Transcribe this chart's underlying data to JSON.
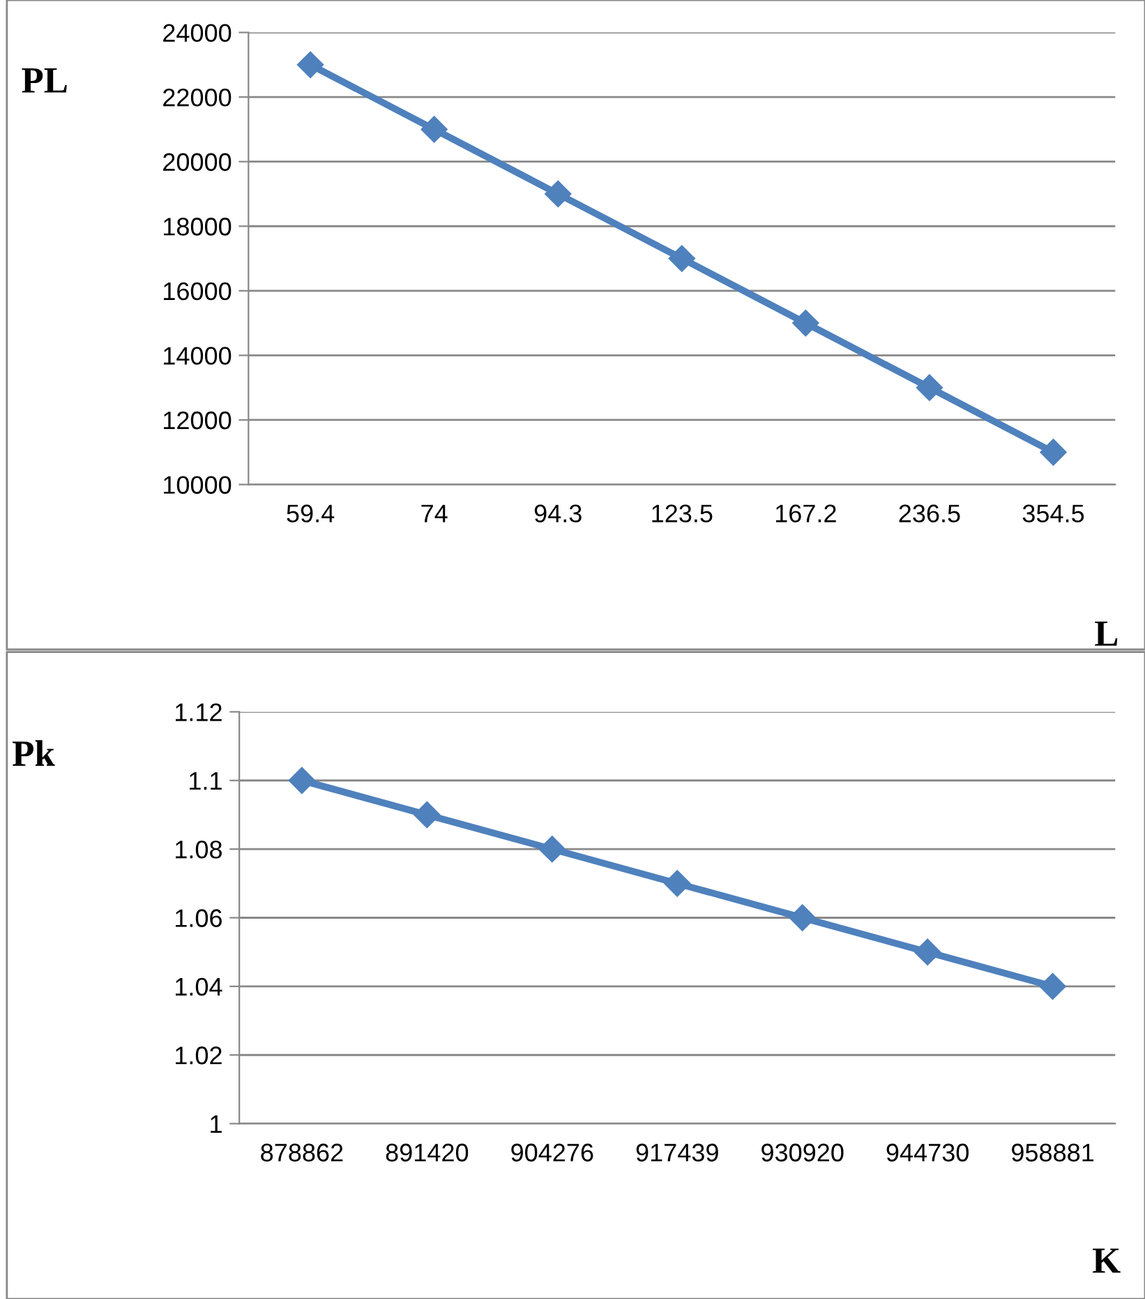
{
  "chart_data": [
    {
      "type": "line",
      "categories": [
        "59.4",
        "74",
        "94.3",
        "123.5",
        "167.2",
        "236.5",
        "354.5"
      ],
      "series": [
        {
          "color": "#4f81bd",
          "values": [
            23000,
            21000,
            19000,
            17000,
            15000,
            13000,
            11000
          ]
        }
      ],
      "ylabel": "PL",
      "xlabel": "L",
      "ylim": [
        10000,
        24000
      ],
      "yticks": [
        10000,
        12000,
        14000,
        16000,
        18000,
        20000,
        22000,
        24000
      ],
      "grid": "y",
      "marker": "diamond",
      "line_style": "solid",
      "legend": false
    },
    {
      "type": "line",
      "categories": [
        "878862",
        "891420",
        "904276",
        "917439",
        "930920",
        "944730",
        "958881"
      ],
      "series": [
        {
          "color": "#4f81bd",
          "values": [
            1.1,
            1.09,
            1.08,
            1.07,
            1.06,
            1.05,
            1.04
          ]
        }
      ],
      "ylabel": "Pk",
      "xlabel": "K",
      "ylim": [
        1,
        1.12
      ],
      "yticks": [
        1,
        1.02,
        1.04,
        1.06,
        1.08,
        1.1,
        1.12
      ],
      "grid": "y",
      "marker": "diamond",
      "line_style": "solid",
      "legend": false
    }
  ]
}
